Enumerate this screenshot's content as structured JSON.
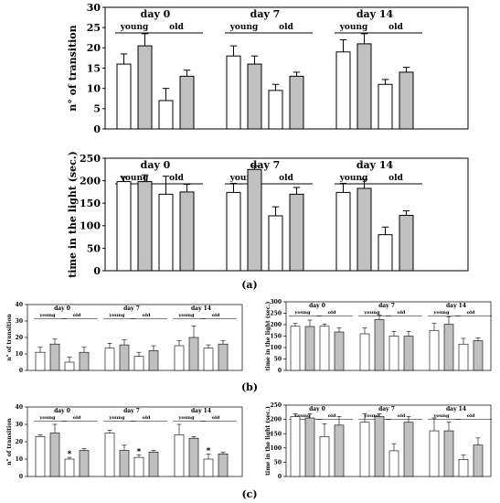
{
  "panel_labels": {
    "a": "(a)",
    "b": "(b)",
    "c": "(c)"
  },
  "colors": {
    "white_bar": "#ffffff",
    "gray_bar": "#c0c0c0",
    "stroke": "#000000"
  },
  "chart_data": [
    {
      "id": "a1",
      "type": "bar",
      "ylabel": "n° of transition",
      "ylim": [
        0,
        30
      ],
      "yticks": [
        0,
        5,
        10,
        15,
        20,
        25,
        30
      ],
      "groups": [
        {
          "day": "day 0",
          "young_label": "young",
          "old_label": "old",
          "values": [
            16,
            20.5,
            7,
            13
          ],
          "errors": [
            2.5,
            3,
            3,
            1.5
          ],
          "stars": [
            false,
            false,
            false,
            false
          ]
        },
        {
          "day": "day 7",
          "young_label": "young",
          "old_label": "old",
          "values": [
            18,
            16,
            9.5,
            13
          ],
          "errors": [
            2.5,
            2,
            1.5,
            1
          ],
          "stars": [
            false,
            false,
            false,
            false
          ]
        },
        {
          "day": "day 14",
          "young_label": "young",
          "old_label": "old",
          "values": [
            19,
            21,
            11,
            14
          ],
          "errors": [
            3,
            2.5,
            1.2,
            1.2
          ],
          "stars": [
            false,
            false,
            false,
            false
          ]
        }
      ]
    },
    {
      "id": "a2",
      "type": "bar",
      "ylabel": "time in the light (sec.)",
      "ylim": [
        0,
        250
      ],
      "yticks": [
        0,
        50,
        100,
        150,
        200,
        250
      ],
      "groups": [
        {
          "day": "day 0",
          "young_label": "young",
          "old_label": "old",
          "values": [
            198,
            198,
            170,
            175
          ],
          "errors": [
            10,
            15,
            40,
            17
          ],
          "stars": [
            false,
            false,
            false,
            false
          ]
        },
        {
          "day": "day 7",
          "young_label": "young",
          "old_label": "old",
          "values": [
            174,
            225,
            122,
            170
          ],
          "errors": [
            20,
            8,
            20,
            15
          ],
          "stars": [
            false,
            false,
            false,
            false
          ]
        },
        {
          "day": "day 14",
          "young_label": "young",
          "old_label": "old",
          "values": [
            174,
            183,
            80,
            123
          ],
          "errors": [
            20,
            20,
            17,
            10
          ],
          "stars": [
            false,
            false,
            false,
            false
          ]
        }
      ]
    },
    {
      "id": "b1",
      "type": "bar",
      "ylabel": "n° of transition",
      "ylim": [
        0,
        40
      ],
      "yticks": [
        0,
        10,
        20,
        30,
        40
      ],
      "groups": [
        {
          "day": "day 0",
          "young_label": "young",
          "old_label": "old",
          "values": [
            11,
            16,
            5,
            11
          ],
          "errors": [
            3,
            3,
            3,
            3
          ],
          "stars": [
            false,
            false,
            false,
            false
          ]
        },
        {
          "day": "day 7",
          "young_label": "young",
          "old_label": "old",
          "values": [
            13.5,
            15.5,
            8.5,
            12
          ],
          "errors": [
            3,
            3,
            2.5,
            3
          ],
          "stars": [
            false,
            false,
            false,
            false
          ]
        },
        {
          "day": "day 14",
          "young_label": "young",
          "old_label": "old",
          "values": [
            15,
            20,
            13.5,
            16
          ],
          "errors": [
            3,
            7,
            2,
            2
          ],
          "stars": [
            false,
            false,
            false,
            false
          ]
        }
      ]
    },
    {
      "id": "b2",
      "type": "bar",
      "ylabel": "time in the light (sec.)",
      "ylim": [
        0,
        300
      ],
      "yticks": [
        0,
        50,
        100,
        150,
        200,
        250,
        300
      ],
      "groups": [
        {
          "day": "day 0",
          "young_label": "young",
          "old_label": "old",
          "values": [
            193,
            192,
            193,
            168
          ],
          "errors": [
            12,
            28,
            10,
            18
          ],
          "stars": [
            false,
            false,
            false,
            false
          ]
        },
        {
          "day": "day 7",
          "young_label": "young",
          "old_label": "old",
          "values": [
            160,
            222,
            150,
            150
          ],
          "errors": [
            25,
            20,
            20,
            20
          ],
          "stars": [
            false,
            false,
            false,
            false
          ]
        },
        {
          "day": "day 14",
          "young_label": "young",
          "old_label": "old",
          "values": [
            175,
            202,
            115,
            130
          ],
          "errors": [
            30,
            32,
            25,
            12
          ],
          "stars": [
            false,
            false,
            false,
            false
          ]
        }
      ]
    },
    {
      "id": "c1",
      "type": "bar",
      "ylabel": "n° of transition",
      "ylim": [
        0,
        40
      ],
      "yticks": [
        0,
        10,
        20,
        30,
        40
      ],
      "groups": [
        {
          "day": "day 0",
          "young_label": "young",
          "old_label": "old",
          "values": [
            23,
            25,
            10,
            15
          ],
          "errors": [
            1,
            5,
            1,
            1
          ],
          "stars": [
            false,
            false,
            true,
            false
          ]
        },
        {
          "day": "day 7",
          "young_label": "young",
          "old_label": "old",
          "values": [
            25,
            15,
            11,
            14
          ],
          "errors": [
            1.5,
            3,
            1.5,
            1
          ],
          "stars": [
            false,
            false,
            true,
            false
          ]
        },
        {
          "day": "day 14",
          "young_label": "young",
          "old_label": "old",
          "values": [
            24,
            22,
            10,
            13
          ],
          "errors": [
            6,
            1,
            3,
            1
          ],
          "stars": [
            false,
            false,
            true,
            false
          ]
        }
      ]
    },
    {
      "id": "c2",
      "type": "bar",
      "ylabel": "time in the light (sec.)",
      "ylim": [
        0,
        250
      ],
      "yticks": [
        0,
        50,
        100,
        150,
        200,
        250
      ],
      "groups": [
        {
          "day": "day 0",
          "young_label": "young",
          "old_label": "old",
          "values": [
            210,
            205,
            140,
            180
          ],
          "errors": [
            10,
            15,
            45,
            30
          ],
          "stars": [
            false,
            false,
            false,
            false
          ]
        },
        {
          "day": "day 7",
          "young_label": "young",
          "old_label": "old",
          "values": [
            190,
            210,
            90,
            190
          ],
          "errors": [
            30,
            10,
            25,
            20
          ],
          "stars": [
            false,
            false,
            false,
            false
          ]
        },
        {
          "day": "day 14",
          "young_label": "young",
          "old_label": "old",
          "values": [
            160,
            160,
            60,
            110
          ],
          "errors": [
            45,
            30,
            15,
            25
          ],
          "stars": [
            false,
            false,
            false,
            false
          ]
        }
      ]
    }
  ]
}
